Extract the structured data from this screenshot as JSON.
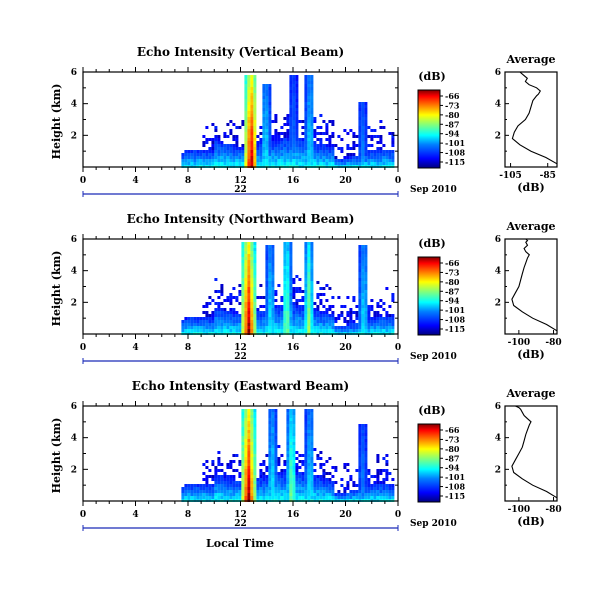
{
  "figure": {
    "xlabel": "Local Time",
    "date_label": "Sep 2010",
    "day_label": "22",
    "units": "(dB)",
    "colorbar_ticks": [
      "-66",
      "-73",
      "-80",
      "-87",
      "-94",
      "-101",
      "-108",
      "-115"
    ],
    "colorscale": [
      "#00007f",
      "#0000ff",
      "#007fff",
      "#00ffff",
      "#7fff7f",
      "#ffff00",
      "#ff7f00",
      "#ff0000",
      "#7f0000"
    ]
  },
  "chart_data": [
    {
      "type": "heatmap",
      "title": "Echo Intensity (Vertical Beam)",
      "ylabel": "Height (km)",
      "xlabel": "Local Time",
      "x_ticks": [
        "0",
        "4",
        "8",
        "12",
        "16",
        "20",
        "0"
      ],
      "y_ticks": [
        "2",
        "4",
        "6"
      ],
      "xlim": [
        0,
        24
      ],
      "ylim": [
        0,
        6
      ],
      "colorbar_range_db": [
        -115,
        -66
      ],
      "data_start_hour": 7.5,
      "bands": [
        {
          "center_hour": 12.7,
          "top_km": 6.0,
          "peak_db": -66
        },
        {
          "center_hour": 13.8,
          "top_km": 5.4,
          "peak_db": -94
        },
        {
          "center_hour": 15.9,
          "top_km": 6.0,
          "peak_db": -101
        },
        {
          "center_hour": 17.2,
          "top_km": 6.0,
          "peak_db": -94
        },
        {
          "center_hour": 21.2,
          "top_km": 4.2,
          "peak_db": -101
        }
      ]
    },
    {
      "type": "line",
      "title": "Average",
      "xlabel": "(dB)",
      "x_ticks": [
        "-105",
        "-85"
      ],
      "y_ticks": [
        "2",
        "4",
        "6"
      ],
      "xlim": [
        -108,
        -80
      ],
      "ylim": [
        0,
        6
      ],
      "x": [
        -80,
        -86,
        -94,
        -100,
        -104,
        -103,
        -101,
        -97,
        -95,
        -94,
        -93,
        -91,
        -90,
        -89,
        -91,
        -95,
        -97,
        -96,
        -98,
        -100
      ],
      "y": [
        0.2,
        0.6,
        1.0,
        1.4,
        1.8,
        2.2,
        2.6,
        3.0,
        3.4,
        3.8,
        4.2,
        4.5,
        4.6,
        4.8,
        5.0,
        5.2,
        5.4,
        5.6,
        5.8,
        6.0
      ]
    },
    {
      "type": "heatmap",
      "title": "Echo Intensity (Northward Beam)",
      "ylabel": "Height (km)",
      "xlabel": "Local Time",
      "x_ticks": [
        "0",
        "4",
        "8",
        "12",
        "16",
        "20",
        "0"
      ],
      "y_ticks": [
        "2",
        "4",
        "6"
      ],
      "xlim": [
        0,
        24
      ],
      "ylim": [
        0,
        6
      ],
      "colorbar_range_db": [
        -115,
        -66
      ],
      "data_start_hour": 7.5,
      "bands": [
        {
          "center_hour": 12.5,
          "top_km": 6.0,
          "peak_db": -66
        },
        {
          "center_hour": 14.2,
          "top_km": 5.8,
          "peak_db": -94
        },
        {
          "center_hour": 15.4,
          "top_km": 6.0,
          "peak_db": -87
        },
        {
          "center_hour": 17.1,
          "top_km": 6.0,
          "peak_db": -87
        },
        {
          "center_hour": 21.3,
          "top_km": 5.8,
          "peak_db": -94
        }
      ]
    },
    {
      "type": "line",
      "title": "Average",
      "xlabel": "(dB)",
      "x_ticks": [
        "-100",
        "-80"
      ],
      "y_ticks": [
        "2",
        "4",
        "6"
      ],
      "xlim": [
        -108,
        -78
      ],
      "ylim": [
        0,
        6
      ],
      "x": [
        -78,
        -84,
        -92,
        -98,
        -103,
        -104,
        -102,
        -100,
        -99,
        -98,
        -97,
        -96,
        -95,
        -94,
        -96,
        -97,
        -95,
        -96,
        -95,
        -96
      ],
      "y": [
        0.2,
        0.6,
        1.0,
        1.4,
        1.8,
        2.2,
        2.6,
        3.0,
        3.4,
        3.8,
        4.2,
        4.5,
        4.8,
        5.0,
        5.2,
        5.4,
        5.6,
        5.8,
        5.9,
        6.0
      ]
    },
    {
      "type": "heatmap",
      "title": "Echo Intensity (Eastward Beam)",
      "ylabel": "Height (km)",
      "xlabel": "Local Time",
      "x_ticks": [
        "0",
        "4",
        "8",
        "12",
        "16",
        "20",
        "0"
      ],
      "y_ticks": [
        "2",
        "4",
        "6"
      ],
      "xlim": [
        0,
        24
      ],
      "ylim": [
        0,
        6
      ],
      "colorbar_range_db": [
        -115,
        -66
      ],
      "data_start_hour": 7.5,
      "bands": [
        {
          "center_hour": 12.5,
          "top_km": 6.0,
          "peak_db": -66
        },
        {
          "center_hour": 14.3,
          "top_km": 6.0,
          "peak_db": -94
        },
        {
          "center_hour": 15.8,
          "top_km": 6.0,
          "peak_db": -87
        },
        {
          "center_hour": 17.2,
          "top_km": 6.0,
          "peak_db": -94
        },
        {
          "center_hour": 21.2,
          "top_km": 5.0,
          "peak_db": -101
        }
      ]
    },
    {
      "type": "line",
      "title": "Average",
      "xlabel": "(dB)",
      "x_ticks": [
        "-100",
        "-80"
      ],
      "y_ticks": [
        "2",
        "4",
        "6"
      ],
      "xlim": [
        -108,
        -78
      ],
      "ylim": [
        0,
        6
      ],
      "x": [
        -78,
        -84,
        -92,
        -98,
        -103,
        -104,
        -102,
        -100,
        -98,
        -97,
        -96,
        -95,
        -94,
        -93,
        -95,
        -97,
        -98,
        -99,
        -100,
        -102
      ],
      "y": [
        0.2,
        0.6,
        1.0,
        1.4,
        1.8,
        2.2,
        2.6,
        3.0,
        3.4,
        3.8,
        4.2,
        4.5,
        4.8,
        5.0,
        5.2,
        5.4,
        5.6,
        5.8,
        5.9,
        6.0
      ]
    }
  ]
}
